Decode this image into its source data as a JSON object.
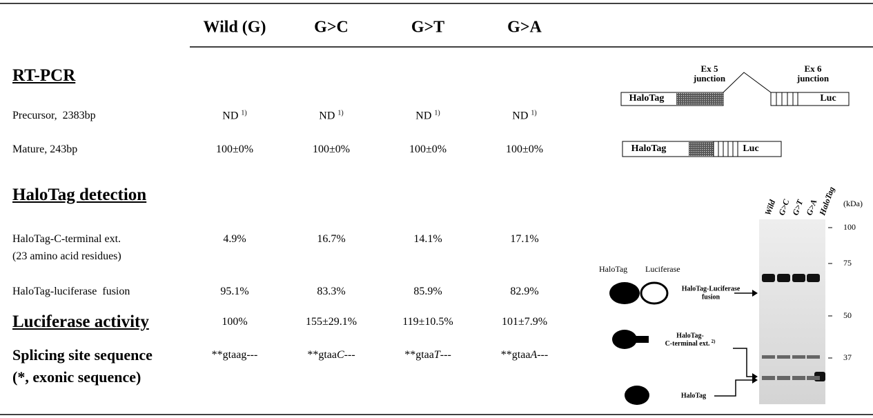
{
  "table": {
    "columns": [
      "Wild (G)",
      "G>C",
      "G>T",
      "G>A"
    ],
    "sections": [
      {
        "title": [
          "RT-PCR"
        ],
        "underline": true,
        "rows": [
          {
            "label": [
              "Precursor,  2383bp"
            ],
            "cells": [
              {
                "text": "ND",
                "note": "1)"
              },
              {
                "text": "ND",
                "note": "1)"
              },
              {
                "text": "ND",
                "note": "1)"
              },
              {
                "text": "ND",
                "note": "1)"
              }
            ]
          },
          {
            "label": [
              "Mature, 243bp"
            ],
            "cells": [
              {
                "text": "100±0%"
              },
              {
                "text": "100±0%"
              },
              {
                "text": "100±0%"
              },
              {
                "text": "100±0%"
              }
            ]
          }
        ]
      },
      {
        "title": [
          "HaloTag detection"
        ],
        "underline": true,
        "rows": [
          {
            "label": [
              "HaloTag-C-terminal ext.",
              "(23 amino acid residues)"
            ],
            "cells": [
              {
                "text": "4.9%"
              },
              {
                "text": "16.7%"
              },
              {
                "text": "14.1%"
              },
              {
                "text": "17.1%"
              }
            ]
          },
          {
            "label": [
              "HaloTag-luciferase  fusion"
            ],
            "cells": [
              {
                "text": "95.1%"
              },
              {
                "text": "83.3%"
              },
              {
                "text": "85.9%"
              },
              {
                "text": "82.9%"
              }
            ]
          }
        ]
      },
      {
        "title": [
          "Luciferase activity"
        ],
        "underline": true,
        "rows": [
          {
            "cells": [
              {
                "text": "100%"
              },
              {
                "text": "155±29.1%"
              },
              {
                "text": "119±10.5%"
              },
              {
                "text": "101±7.9%"
              }
            ]
          }
        ]
      },
      {
        "title": [
          "Splicing site sequence",
          "(*, exonic sequence)"
        ],
        "underline": false,
        "rows": [
          {
            "cells": [
              {
                "text": "**gtaag---"
              },
              {
                "text": "**gtaa",
                "italic": "C",
                "after": "---"
              },
              {
                "text": "**gtaa",
                "italic": "T",
                "after": "---"
              },
              {
                "text": "**gtaa",
                "italic": "A",
                "after": "---"
              }
            ]
          }
        ]
      }
    ]
  },
  "diagram": {
    "precursor": {
      "ex5": [
        "Ex 5",
        "junction"
      ],
      "ex6": [
        "Ex 6",
        "junction"
      ],
      "halotag": "HaloTag",
      "luc": "Luc"
    },
    "mature": {
      "halotag": "HaloTag",
      "luc": "Luc"
    },
    "gel": {
      "lanes": [
        "Wild",
        "G>C",
        "G>T",
        "G>A",
        "HaloTag"
      ],
      "unit": "(kDa)",
      "markers": [
        "100",
        "75",
        "50",
        "37"
      ]
    },
    "legend": {
      "halotag": "HaloTag",
      "luciferase": "Luciferase",
      "fusion": [
        "HaloTag-Luciferase",
        "fusion"
      ],
      "ext": [
        "HaloTag-",
        "C-terminal ext."
      ],
      "ext_note": "2)",
      "halotag_only": "HaloTag"
    }
  }
}
